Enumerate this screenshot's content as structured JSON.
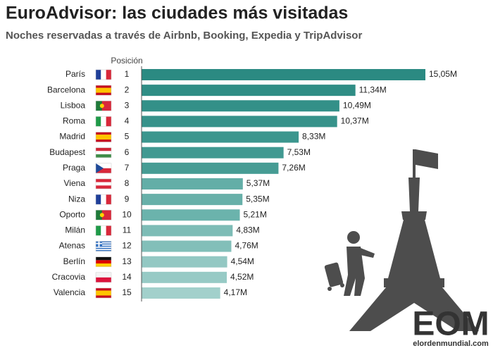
{
  "chart_data": {
    "type": "bar",
    "orientation": "horizontal",
    "title": "EuroAdvisor: las ciudades más visitadas",
    "subtitle": "Noches reservadas a través de Airbnb, Booking, Expedia y TripAdvisor",
    "position_header": "Posición",
    "categories": [
      "París",
      "Barcelona",
      "Lisboa",
      "Roma",
      "Madrid",
      "Budapest",
      "Praga",
      "Viena",
      "Niza",
      "Oporto",
      "Milán",
      "Atenas",
      "Berlín",
      "Cracovia",
      "Valencia"
    ],
    "positions": [
      1,
      2,
      3,
      4,
      5,
      6,
      7,
      8,
      9,
      10,
      11,
      12,
      13,
      14,
      15
    ],
    "values": [
      15.05,
      11.34,
      10.49,
      10.37,
      8.33,
      7.53,
      7.26,
      5.37,
      5.35,
      5.21,
      4.83,
      4.76,
      4.54,
      4.52,
      4.17
    ],
    "value_labels": [
      "15,05M",
      "11,34M",
      "10,49M",
      "10,37M",
      "8,33M",
      "7,53M",
      "7,26M",
      "5,37M",
      "5,35M",
      "5,21M",
      "4,83M",
      "4,76M",
      "4,54M",
      "4,52M",
      "4,17M"
    ],
    "colors": [
      "#2b8a82",
      "#2f8d85",
      "#339088",
      "#36928a",
      "#3c968e",
      "#419991",
      "#469c94",
      "#63aea7",
      "#67b0a9",
      "#6bb3ac",
      "#7dbcb6",
      "#82bfb9",
      "#93c8c3",
      "#97cac5",
      "#a2d0cb"
    ],
    "logo": "EOM",
    "logo_url": "elordenmundial.com"
  }
}
